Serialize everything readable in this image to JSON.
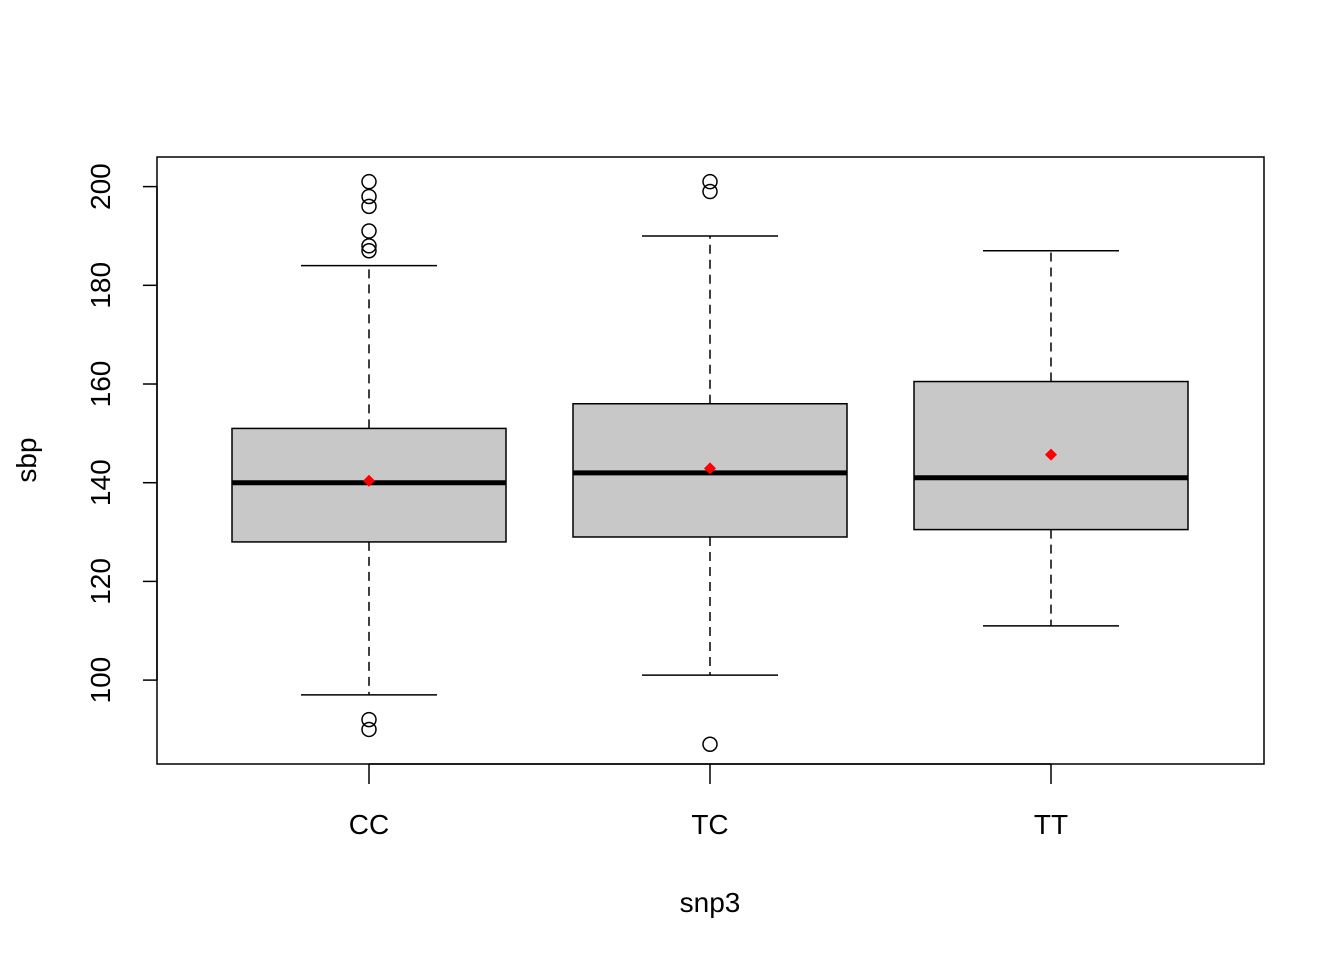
{
  "chart_data": {
    "type": "boxplot",
    "title": "",
    "xlabel": "snp3",
    "ylabel": "sbp",
    "ylim": [
      83,
      206
    ],
    "yticks": [
      100,
      120,
      140,
      160,
      180,
      200
    ],
    "ytick_labels": [
      "100",
      "120",
      "140",
      "160",
      "180",
      "200"
    ],
    "categories": [
      "CC",
      "TC",
      "TT"
    ],
    "groups": [
      {
        "name": "CC",
        "whisker_low": 97,
        "q1": 128,
        "median": 140,
        "q3": 151,
        "whisker_high": 184,
        "mean": 140.4,
        "outliers": [
          90,
          92,
          187,
          188,
          191,
          196,
          198,
          201
        ]
      },
      {
        "name": "TC",
        "whisker_low": 101,
        "q1": 129,
        "median": 142,
        "q3": 156,
        "whisker_high": 190,
        "mean": 142.9,
        "outliers": [
          87,
          199,
          201
        ]
      },
      {
        "name": "TT",
        "whisker_low": 111,
        "q1": 130.5,
        "median": 141,
        "q3": 160.5,
        "whisker_high": 187,
        "mean": 145.7,
        "outliers": []
      }
    ],
    "grid": false,
    "legend": "none",
    "colors": {
      "box_fill": "#c8c8c8",
      "stroke": "#000000",
      "mean_marker": "#ff0000"
    }
  }
}
